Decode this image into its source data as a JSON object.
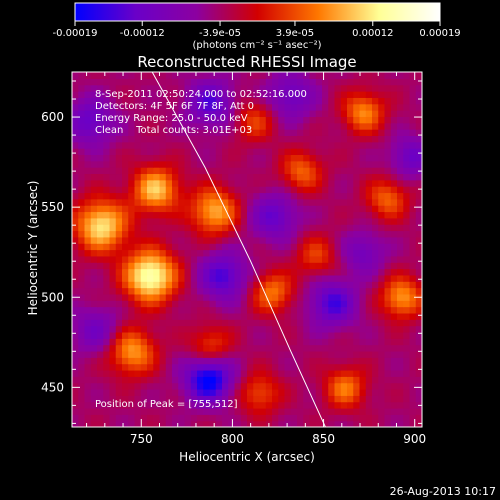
{
  "chart_data": {
    "type": "heatmap",
    "title": "Reconstructed RHESSI Image",
    "xlabel": "Heliocentric X (arcsec)",
    "ylabel": "Heliocentric Y (arcsec)",
    "xlim": [
      712,
      904
    ],
    "ylim": [
      428,
      625
    ],
    "x_ticks": [
      750,
      800,
      850,
      900
    ],
    "y_ticks": [
      450,
      500,
      550,
      600
    ],
    "info_lines": [
      "8-Sep-2011 02:50:24.000 to 02:52:16.000",
      "Detectors: 4F 5F 6F 7F 8F, Att 0",
      "Energy Range: 25.0 - 50.0 keV",
      "Clean    Total counts: 3.01E+03"
    ],
    "peak_label": "Position of Peak = [755,512]",
    "peak": [
      755,
      512
    ],
    "colorbar": {
      "unit_label": "(photons cm⁻² s⁻¹ asec⁻²)",
      "range": [
        -0.00019,
        0.00019
      ],
      "tick_values": [
        -0.00019,
        -0.00012,
        -3.9e-05,
        3.9e-05,
        0.00012,
        0.00019
      ],
      "tick_labels": [
        "-0.00019",
        "-0.00012",
        "-3.9e-05",
        "3.9e-05",
        "0.00012",
        "0.00019"
      ],
      "colors": [
        "#0000ff",
        "#6a00c8",
        "#8c00a0",
        "#d20000",
        "#ff7800",
        "#ffff96",
        "#ffffff"
      ]
    },
    "limb": [
      [
        756,
        625
      ],
      [
        785,
        572
      ],
      [
        810,
        520
      ],
      [
        832,
        470
      ],
      [
        851,
        428
      ]
    ],
    "sources": [
      {
        "x": 755,
        "y": 512,
        "amp": 0.00019,
        "w": 10
      },
      {
        "x": 728,
        "y": 540,
        "amp": 0.00016,
        "w": 10
      },
      {
        "x": 758,
        "y": 560,
        "amp": 0.00014,
        "w": 9
      },
      {
        "x": 790,
        "y": 548,
        "amp": 0.00013,
        "w": 9
      },
      {
        "x": 745,
        "y": 470,
        "amp": 0.00012,
        "w": 9
      },
      {
        "x": 872,
        "y": 603,
        "amp": 0.00011,
        "w": 8
      },
      {
        "x": 893,
        "y": 500,
        "amp": 0.00012,
        "w": 8
      },
      {
        "x": 862,
        "y": 450,
        "amp": 0.0001,
        "w": 8
      },
      {
        "x": 822,
        "y": 503,
        "amp": 0.0001,
        "w": 8
      },
      {
        "x": 838,
        "y": 570,
        "amp": 9e-05,
        "w": 8
      },
      {
        "x": 885,
        "y": 555,
        "amp": 9e-05,
        "w": 8
      },
      {
        "x": 815,
        "y": 447,
        "amp": 8e-05,
        "w": 8
      },
      {
        "x": 788,
        "y": 473,
        "amp": 8e-05,
        "w": 8
      },
      {
        "x": 812,
        "y": 598,
        "amp": 7e-05,
        "w": 8
      },
      {
        "x": 846,
        "y": 523,
        "amp": 7e-05,
        "w": 8
      },
      {
        "x": 787,
        "y": 455,
        "amp": -0.00016,
        "w": 9
      },
      {
        "x": 795,
        "y": 512,
        "amp": -0.00011,
        "w": 9
      },
      {
        "x": 855,
        "y": 497,
        "amp": -0.00011,
        "w": 9
      },
      {
        "x": 788,
        "y": 608,
        "amp": -0.0001,
        "w": 9
      },
      {
        "x": 823,
        "y": 545,
        "amp": -9e-05,
        "w": 9
      },
      {
        "x": 722,
        "y": 598,
        "amp": -9e-05,
        "w": 9
      },
      {
        "x": 898,
        "y": 578,
        "amp": -8e-05,
        "w": 8
      },
      {
        "x": 872,
        "y": 525,
        "amp": -7e-05,
        "w": 8
      },
      {
        "x": 832,
        "y": 612,
        "amp": -8e-05,
        "w": 9
      },
      {
        "x": 725,
        "y": 482,
        "amp": -7e-05,
        "w": 9
      }
    ]
  },
  "footer": {
    "date": "26-Aug-2013 10:17"
  }
}
